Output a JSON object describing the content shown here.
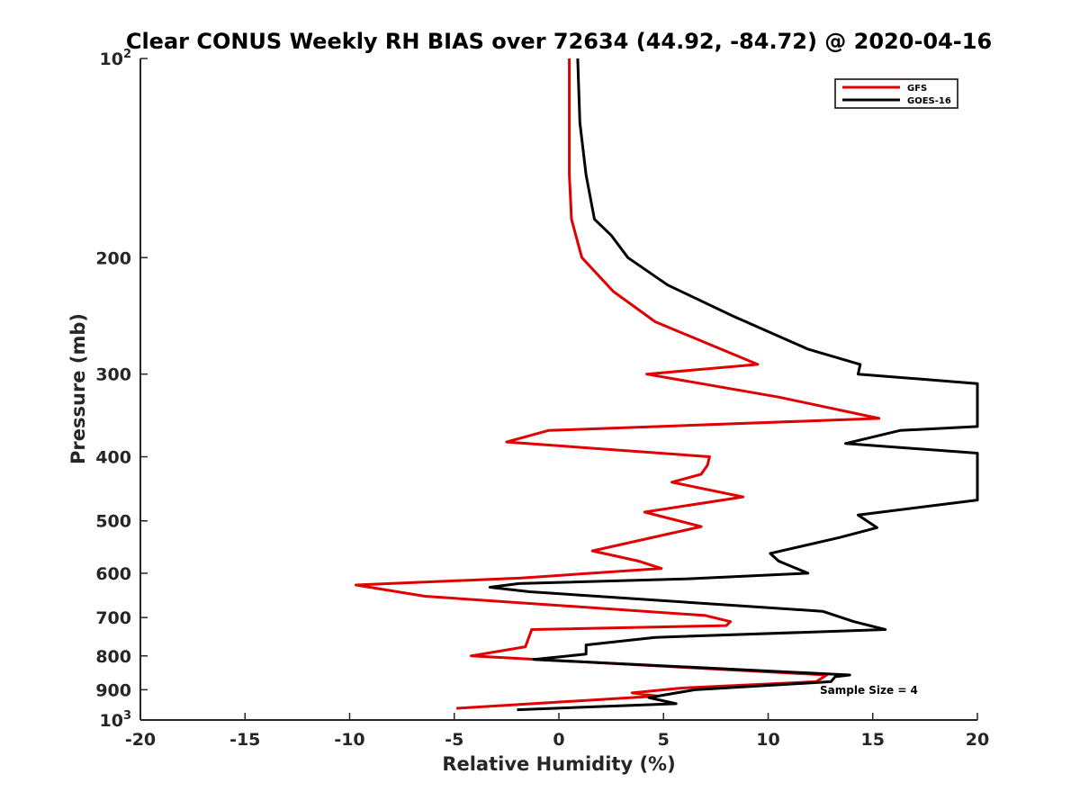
{
  "chart_data": {
    "type": "line",
    "title": "Clear CONUS Weekly RH BIAS over 72634 (44.92, -84.72) @ 2020-04-16",
    "xlabel": "Relative Humidity (%)",
    "ylabel": "Pressure (mb)",
    "xlim": [
      -20,
      20
    ],
    "ylim": [
      100,
      1000
    ],
    "yscale": "log",
    "yreverse": true,
    "grid": false,
    "legend_position": "top-right",
    "x_ticks": [
      {
        "value": -20,
        "label": "-20"
      },
      {
        "value": -15,
        "label": "-15"
      },
      {
        "value": -10,
        "label": "-10"
      },
      {
        "value": -5,
        "label": "-5"
      },
      {
        "value": 0,
        "label": "0"
      },
      {
        "value": 5,
        "label": "5"
      },
      {
        "value": 10,
        "label": "10"
      },
      {
        "value": 15,
        "label": "15"
      },
      {
        "value": 20,
        "label": "20"
      }
    ],
    "y_ticks": [
      {
        "value": 100,
        "base": "10",
        "sup": "2"
      },
      {
        "value": 200,
        "label": "200"
      },
      {
        "value": 300,
        "label": "300"
      },
      {
        "value": 400,
        "label": "400"
      },
      {
        "value": 500,
        "label": "500"
      },
      {
        "value": 600,
        "label": "600"
      },
      {
        "value": 700,
        "label": "700"
      },
      {
        "value": 800,
        "label": "800"
      },
      {
        "value": 900,
        "label": "900"
      },
      {
        "value": 1000,
        "base": "10",
        "sup": "3"
      }
    ],
    "annotation": "Sample Size = 4",
    "series": [
      {
        "name": "GFS",
        "color": "#e00000",
        "points": [
          [
            0.5,
            100
          ],
          [
            0.5,
            125
          ],
          [
            0.5,
            150
          ],
          [
            0.6,
            175
          ],
          [
            1.0,
            195
          ],
          [
            1.1,
            200
          ],
          [
            2.6,
            225
          ],
          [
            4.6,
            250
          ],
          [
            9.5,
            290
          ],
          [
            4.2,
            300
          ],
          [
            10.5,
            325
          ],
          [
            15.3,
            350
          ],
          [
            -0.5,
            365
          ],
          [
            -2.5,
            380
          ],
          [
            7.2,
            400
          ],
          [
            7.1,
            412
          ],
          [
            6.8,
            425
          ],
          [
            5.4,
            437
          ],
          [
            8.8,
            460
          ],
          [
            4.1,
            485
          ],
          [
            6.8,
            510
          ],
          [
            1.6,
            555
          ],
          [
            3.8,
            575
          ],
          [
            4.9,
            590
          ],
          [
            -1.8,
            610
          ],
          [
            -9.7,
            625
          ],
          [
            -6.4,
            650
          ],
          [
            7.0,
            695
          ],
          [
            8.2,
            710
          ],
          [
            8.0,
            720
          ],
          [
            -1.3,
            730
          ],
          [
            -1.6,
            775
          ],
          [
            -4.2,
            800
          ],
          [
            12.8,
            855
          ],
          [
            12.3,
            875
          ],
          [
            5.8,
            895
          ],
          [
            3.5,
            910
          ],
          [
            4.7,
            920
          ],
          [
            -4.9,
            960
          ]
        ]
      },
      {
        "name": "GOES-16",
        "color": "#000000",
        "points": [
          [
            0.9,
            100
          ],
          [
            1.0,
            125
          ],
          [
            1.3,
            150
          ],
          [
            1.7,
            175
          ],
          [
            2.5,
            185
          ],
          [
            3.3,
            200
          ],
          [
            5.2,
            220
          ],
          [
            8.3,
            245
          ],
          [
            11.9,
            275
          ],
          [
            14.4,
            290
          ],
          [
            14.3,
            300
          ],
          [
            20,
            310
          ],
          [
            20,
            360
          ],
          [
            16.3,
            365
          ],
          [
            13.7,
            382
          ],
          [
            20,
            395
          ],
          [
            20,
            465
          ],
          [
            14.3,
            490
          ],
          [
            15.2,
            512
          ],
          [
            13.4,
            530
          ],
          [
            10.1,
            560
          ],
          [
            10.5,
            575
          ],
          [
            11.9,
            600
          ],
          [
            6.0,
            612
          ],
          [
            -1.9,
            622
          ],
          [
            -3.3,
            630
          ],
          [
            -1.4,
            640
          ],
          [
            12.6,
            685
          ],
          [
            14.1,
            710
          ],
          [
            15.6,
            730
          ],
          [
            4.6,
            750
          ],
          [
            1.3,
            770
          ],
          [
            1.3,
            795
          ],
          [
            -1.2,
            810
          ],
          [
            13.9,
            855
          ],
          [
            13.2,
            860
          ],
          [
            13.0,
            875
          ],
          [
            6.5,
            900
          ],
          [
            4.3,
            925
          ],
          [
            5.6,
            945
          ],
          [
            -2.0,
            965
          ]
        ]
      }
    ]
  }
}
